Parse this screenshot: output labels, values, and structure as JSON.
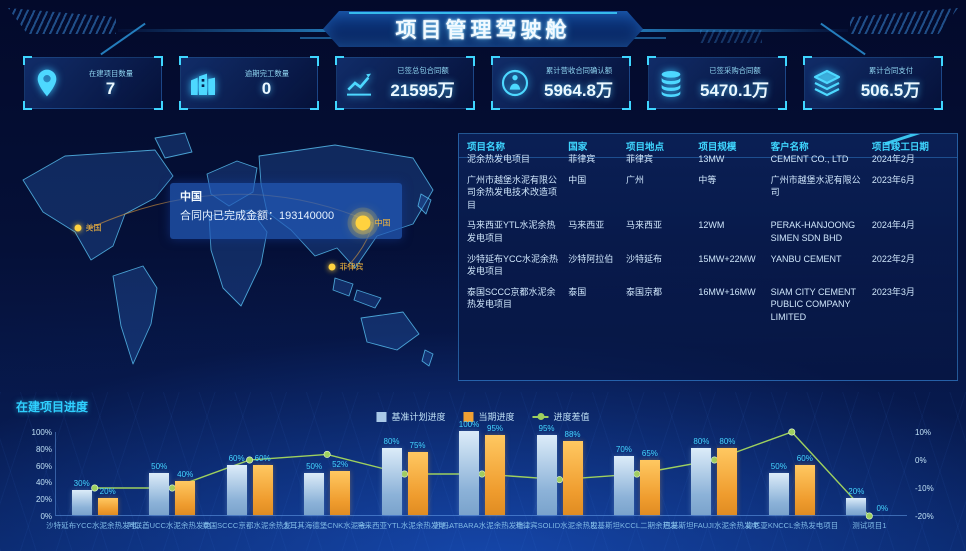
{
  "header": {
    "title": "项目管理驾驶舱"
  },
  "kpi": {
    "cards": [
      {
        "icon": "location-pin-icon",
        "label": "在建项目数量",
        "value": "7"
      },
      {
        "icon": "building-icon",
        "label": "逾期完工数量",
        "value": "0"
      },
      {
        "icon": "trend-up-icon",
        "label": "已签总包合同额",
        "value": "21595万"
      },
      {
        "icon": "gauge-icon",
        "label": "累计营收合同确认额",
        "value": "5964.8万"
      },
      {
        "icon": "coins-icon",
        "label": "已签采购合同额",
        "value": "5470.1万"
      },
      {
        "icon": "layers-icon",
        "label": "累计合同支付",
        "value": "506.5万"
      }
    ]
  },
  "map": {
    "tooltip": {
      "title": "中国",
      "line": "合同内已完成金额：193140000"
    },
    "markers": [
      {
        "label": "美国",
        "x": 83,
        "y": 100,
        "highlight": false
      },
      {
        "label": "中国",
        "x": 368,
        "y": 95,
        "highlight": true
      },
      {
        "label": "菲律宾",
        "x": 341,
        "y": 139,
        "highlight": false
      }
    ]
  },
  "table": {
    "headers": [
      "项目名称",
      "国家",
      "项目地点",
      "项目规模",
      "客户名称",
      "项目竣工日期"
    ],
    "rows": [
      [
        "泥余热发电项目",
        "菲律宾",
        "菲律宾",
        "13MW",
        "CEMENT CO., LTD",
        "2024年2月"
      ],
      [
        "广州市越堡水泥有限公司余热发电技术改造项目",
        "中国",
        "广州",
        "中等",
        "广州市越堡水泥有限公司",
        "2023年6月"
      ],
      [
        "马来西亚YTL水泥余热发电项目",
        "马来西亚",
        "马来西亚",
        "12WM",
        "PERAK-HANJOONG SIMEN SDN BHD",
        "2024年4月"
      ],
      [
        "沙特延布YCC水泥余热发电项目",
        "沙特阿拉伯",
        "沙特延布",
        "15MW+22MW",
        "YANBU CEMENT",
        "2022年2月"
      ],
      [
        "泰国SCCC京都水泥余热发电项目",
        "泰国",
        "泰国京都",
        "16MW+16MW",
        "SIAM CITY CEMENT PUBLIC COMPANY LIMITED",
        "2023年3月"
      ]
    ]
  },
  "chart_data": {
    "type": "bar",
    "title": "在建项目进度",
    "categories": [
      "沙特延布YCC水泥余热发电...",
      "阿联酋UCC水泥余热发电...",
      "泰国SCCC京都水泥余热发...",
      "土耳其海德堡CNK水泥余...",
      "马来西亚YTL水泥余热发电...",
      "苏丹ATBARA水泥余热发电...",
      "菲律宾SOLID水泥余热发...",
      "巴基斯坦KCCL二期余热发...",
      "巴基斯坦FAUJI水泥余热发电...",
      "肯尼亚KNCCL余热发电项目",
      "测试项目1"
    ],
    "series": [
      {
        "name": "基准计划进度",
        "type": "bar",
        "color": "#a9c9e8",
        "axis": "left",
        "values": [
          30,
          50,
          60,
          50,
          80,
          100,
          95,
          70,
          80,
          50,
          20
        ]
      },
      {
        "name": "当期进度",
        "type": "bar",
        "color": "#f0a033",
        "axis": "left",
        "values": [
          20,
          40,
          60,
          52,
          75,
          95,
          88,
          65,
          80,
          60,
          0
        ]
      },
      {
        "name": "进度差值",
        "type": "line",
        "color": "#9ed05e",
        "axis": "right",
        "values": [
          -10,
          -10,
          0,
          2,
          -5,
          -5,
          -7,
          -5,
          0,
          10,
          -20
        ]
      }
    ],
    "left_axis": {
      "ticks": [
        "100%",
        "80%",
        "60%",
        "40%",
        "20%",
        "0%"
      ],
      "min": 0,
      "max": 100
    },
    "right_axis": {
      "ticks": [
        "10%",
        "0%",
        "-10%",
        "-20%"
      ],
      "min": -20,
      "max": 10
    },
    "xlabel": "",
    "ylabel": "",
    "grid": false,
    "legend_position": "top-center"
  }
}
